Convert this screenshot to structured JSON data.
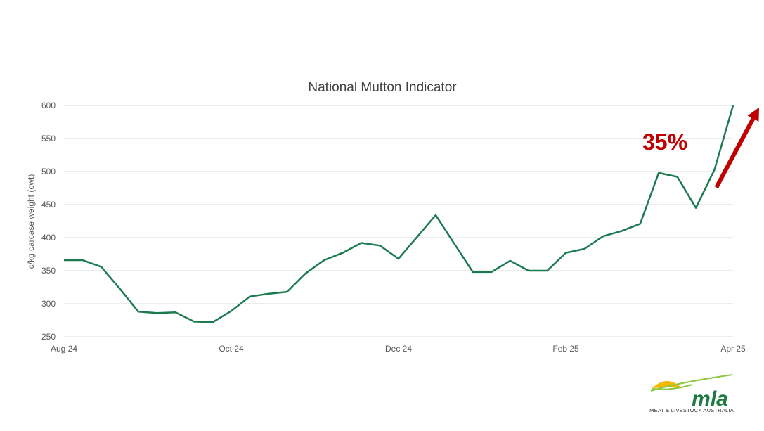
{
  "chart_data": {
    "type": "line",
    "title": "National Mutton Indicator",
    "ylabel": "c/kg carcase weight (cwt)",
    "xlabel": "",
    "ylim": [
      250,
      600
    ],
    "yticks": [
      250,
      300,
      350,
      400,
      450,
      500,
      550,
      600
    ],
    "x_ticks": [
      {
        "label": "Aug 24",
        "index": 0
      },
      {
        "label": "Oct 24",
        "index": 9
      },
      {
        "label": "Dec 24",
        "index": 18
      },
      {
        "label": "Feb 25",
        "index": 27
      },
      {
        "label": "Apr 25",
        "index": 36
      }
    ],
    "grid": true,
    "legend": "none",
    "line_color": "#1b7a4f",
    "series": [
      {
        "values": [
          366,
          366,
          356,
          323,
          288,
          286,
          287,
          273,
          272,
          289,
          311,
          315,
          318,
          346,
          366,
          377,
          392,
          388,
          368,
          401,
          434,
          391,
          348,
          348,
          365,
          350,
          350,
          377,
          383,
          402,
          410,
          421,
          498,
          492,
          445,
          503,
          600
        ]
      }
    ],
    "annotation": {
      "text": "35%",
      "color": "#c00000",
      "arrow_from": {
        "index": 35.1,
        "value": 476
      },
      "arrow_to": {
        "index": 37.4,
        "value": 597
      }
    }
  },
  "logo": {
    "name": "mla",
    "subtitle": "MEAT & LIVESTOCK AUSTRALIA"
  }
}
